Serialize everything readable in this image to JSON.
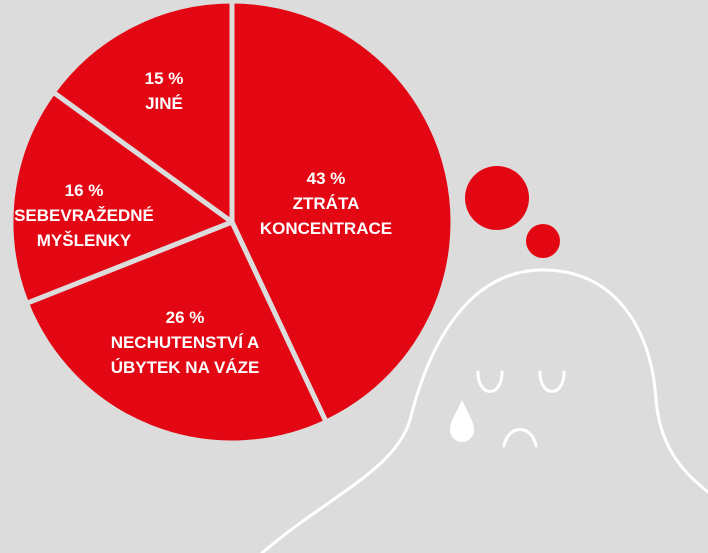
{
  "chart_data": {
    "type": "pie",
    "categories": [
      "ZTRÁTA KONCENTRACE",
      "NECHUTENSTVÍ A ÚBYTEK NA VÁZE",
      "SEBEVRAŽEDNÉ MYŠLENKY",
      "JINÉ"
    ],
    "values": [
      43,
      26,
      16,
      15
    ],
    "value_labels": [
      "43 %",
      "26 %",
      "16 %",
      "15 %"
    ],
    "color": "#e30613"
  }
}
